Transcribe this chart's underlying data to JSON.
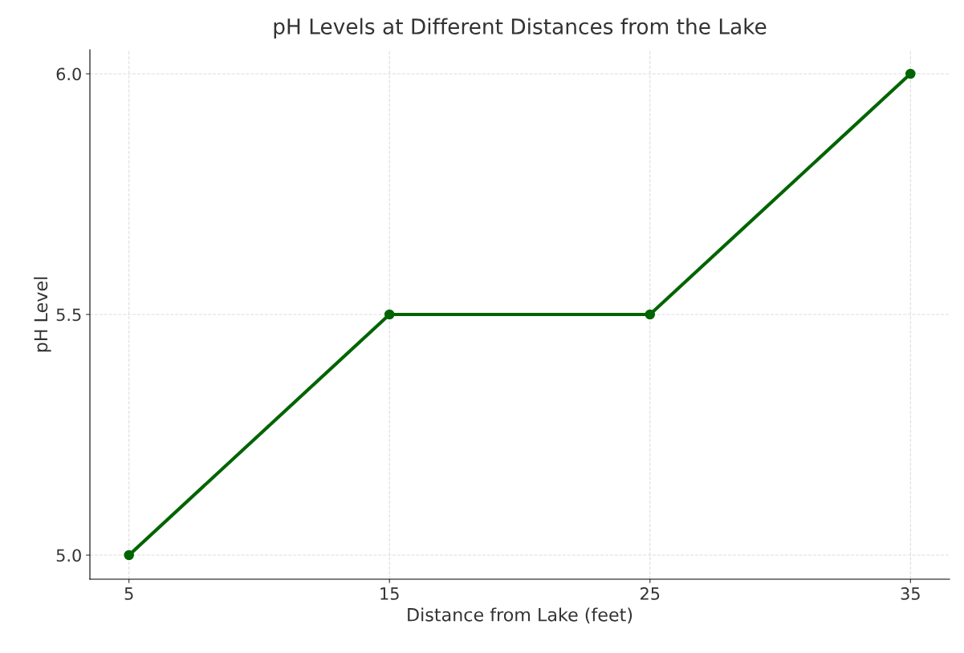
{
  "chart_data": {
    "type": "line",
    "title": "pH Levels at Different Distances from the Lake",
    "xlabel": "Distance from Lake (feet)",
    "ylabel": "pH Level",
    "x": [
      5,
      15,
      25,
      35
    ],
    "series": [
      {
        "color": "#006400",
        "values": [
          5.0,
          5.5,
          5.5,
          6.0
        ]
      }
    ],
    "xlim": [
      3.5,
      36.5
    ],
    "xticks": [
      5,
      15,
      25,
      35
    ],
    "ylim": [
      4.95,
      6.05
    ],
    "yticks": [
      {
        "value": 5.0,
        "label": "5.0"
      },
      {
        "value": 5.5,
        "label": "5.5"
      },
      {
        "value": 6.0,
        "label": "6.0"
      }
    ],
    "grid": true,
    "marker": "circle",
    "line_style": "solid"
  }
}
